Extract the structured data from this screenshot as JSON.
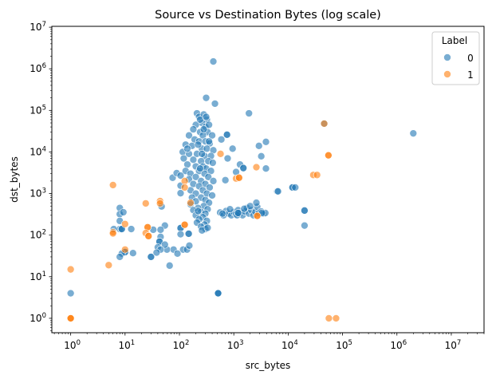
{
  "chart_data": {
    "type": "scatter",
    "title": "Source vs Destination Bytes (log scale)",
    "xlabel": "src_bytes",
    "ylabel": "dst_bytes",
    "xscale": "log",
    "yscale": "log",
    "xlim": [
      0.45,
      40000000
    ],
    "ylim": [
      0.45,
      10500000
    ],
    "grid": false,
    "legend": {
      "title": "Label",
      "placement": "top-right"
    },
    "x_ticks": [
      {
        "value": 1,
        "base": "10",
        "exp": "0"
      },
      {
        "value": 10,
        "base": "10",
        "exp": "1"
      },
      {
        "value": 100,
        "base": "10",
        "exp": "2"
      },
      {
        "value": 1000,
        "base": "10",
        "exp": "3"
      },
      {
        "value": 10000,
        "base": "10",
        "exp": "4"
      },
      {
        "value": 100000,
        "base": "10",
        "exp": "5"
      },
      {
        "value": 1000000,
        "base": "10",
        "exp": "6"
      },
      {
        "value": 10000000,
        "base": "10",
        "exp": "7"
      }
    ],
    "y_ticks": [
      {
        "value": 1,
        "base": "10",
        "exp": "0"
      },
      {
        "value": 10,
        "base": "10",
        "exp": "1"
      },
      {
        "value": 100,
        "base": "10",
        "exp": "2"
      },
      {
        "value": 1000,
        "base": "10",
        "exp": "3"
      },
      {
        "value": 10000,
        "base": "10",
        "exp": "4"
      },
      {
        "value": 100000,
        "base": "10",
        "exp": "5"
      },
      {
        "value": 1000000,
        "base": "10",
        "exp": "6"
      },
      {
        "value": 10000000,
        "base": "10",
        "exp": "7"
      }
    ],
    "series": [
      {
        "name": "0",
        "color": "#1f77b4",
        "points": [
          [
            420,
            1500000
          ],
          [
            310,
            200000
          ],
          [
            450,
            145000
          ],
          [
            1900,
            85000
          ],
          [
            210,
            85000
          ],
          [
            230,
            70000
          ],
          [
            280,
            80000
          ],
          [
            320,
            60000
          ],
          [
            260,
            50000
          ],
          [
            200,
            45000
          ],
          [
            300,
            40000
          ],
          [
            350,
            45000
          ],
          [
            180,
            35000
          ],
          [
            240,
            30000
          ],
          [
            330,
            30000
          ],
          [
            150,
            25000
          ],
          [
            270,
            25000
          ],
          [
            400,
            25000
          ],
          [
            190,
            20000
          ],
          [
            230,
            18000
          ],
          [
            300,
            18000
          ],
          [
            360,
            16000
          ],
          [
            130,
            15000
          ],
          [
            170,
            14000
          ],
          [
            260,
            12000
          ],
          [
            320,
            12000
          ],
          [
            420,
            11000
          ],
          [
            115,
            10000
          ],
          [
            150,
            9000
          ],
          [
            210,
            9000
          ],
          [
            290,
            8000
          ],
          [
            380,
            8000
          ],
          [
            120,
            7000
          ],
          [
            180,
            6500
          ],
          [
            250,
            6000
          ],
          [
            340,
            6000
          ],
          [
            410,
            5500
          ],
          [
            140,
            5000
          ],
          [
            200,
            4500
          ],
          [
            270,
            4500
          ],
          [
            310,
            4000
          ],
          [
            130,
            3500
          ],
          [
            230,
            3500
          ],
          [
            380,
            3500
          ],
          [
            160,
            3000
          ],
          [
            290,
            3000
          ],
          [
            200,
            2500
          ],
          [
            340,
            2500
          ],
          [
            150,
            2200
          ],
          [
            250,
            2000
          ],
          [
            420,
            2000
          ],
          [
            180,
            1700
          ],
          [
            300,
            1700
          ],
          [
            230,
            1500
          ],
          [
            360,
            1400
          ],
          [
            160,
            1200
          ],
          [
            270,
            1200
          ],
          [
            200,
            1000
          ],
          [
            320,
            1000
          ],
          [
            400,
            900
          ],
          [
            170,
            800
          ],
          [
            250,
            800
          ],
          [
            300,
            700
          ],
          [
            200,
            650
          ],
          [
            350,
            600
          ],
          [
            160,
            550
          ],
          [
            280,
            500
          ],
          [
            220,
            450
          ],
          [
            330,
            420
          ],
          [
            180,
            400
          ],
          [
            250,
            360
          ],
          [
            300,
            330
          ],
          [
            200,
            300
          ],
          [
            270,
            270
          ],
          [
            230,
            240
          ],
          [
            320,
            220
          ],
          [
            210,
            200
          ],
          [
            290,
            180
          ],
          [
            250,
            160
          ],
          [
            300,
            140
          ],
          [
            260,
            130
          ],
          [
            330,
            150
          ],
          [
            220,
            380
          ],
          [
            240,
            4000
          ],
          [
            260,
            9000
          ],
          [
            220,
            15000
          ],
          [
            280,
            35000
          ],
          [
            240,
            60000
          ],
          [
            310,
            70000
          ],
          [
            350,
            18000
          ],
          [
            140,
            12000
          ],
          [
            590,
            20000
          ],
          [
            750,
            26000
          ],
          [
            750,
            26000
          ],
          [
            950,
            12000
          ],
          [
            770,
            7000
          ],
          [
            700,
            2100
          ],
          [
            1300,
            5000
          ],
          [
            1500,
            4100
          ],
          [
            1500,
            4100
          ],
          [
            1100,
            3300
          ],
          [
            2900,
            14000
          ],
          [
            3900,
            17500
          ],
          [
            3200,
            7900
          ],
          [
            3900,
            4000
          ],
          [
            6300,
            1130
          ],
          [
            560,
            350
          ],
          [
            650,
            300
          ],
          [
            720,
            380
          ],
          [
            800,
            330
          ],
          [
            900,
            300
          ],
          [
            1000,
            360
          ],
          [
            1100,
            320
          ],
          [
            1200,
            400
          ],
          [
            1300,
            340
          ],
          [
            1450,
            300
          ],
          [
            1600,
            370
          ],
          [
            1750,
            450
          ],
          [
            1900,
            330
          ],
          [
            2100,
            400
          ],
          [
            2300,
            300
          ],
          [
            2500,
            360
          ],
          [
            2700,
            480
          ],
          [
            2900,
            340
          ],
          [
            3200,
            370
          ],
          [
            3500,
            330
          ],
          [
            3800,
            340
          ],
          [
            850,
            420
          ],
          [
            1550,
            430
          ],
          [
            2000,
            500
          ],
          [
            620,
            330
          ],
          [
            1150,
            300
          ],
          [
            2600,
            600
          ],
          [
            1200,
            340
          ],
          [
            1200,
            340
          ],
          [
            3300,
            340
          ],
          [
            75,
            2400
          ],
          [
            89,
            3100
          ],
          [
            105,
            2700
          ],
          [
            105,
            1550
          ],
          [
            105,
            1020
          ],
          [
            105,
            148
          ],
          [
            105,
            148
          ],
          [
            105,
            105
          ],
          [
            117,
            45
          ],
          [
            138,
            45
          ],
          [
            152,
            56
          ],
          [
            148,
            108
          ],
          [
            148,
            108
          ],
          [
            78,
            45
          ],
          [
            92,
            36
          ],
          [
            66,
            18.5
          ],
          [
            59,
            45
          ],
          [
            54,
            170
          ],
          [
            47,
            490
          ],
          [
            33,
            135
          ],
          [
            45,
            135
          ],
          [
            45,
            91
          ],
          [
            43,
            70
          ],
          [
            43,
            70
          ],
          [
            40,
            51
          ],
          [
            54,
            59
          ],
          [
            30,
            30
          ],
          [
            30,
            30
          ],
          [
            45,
            45
          ],
          [
            38,
            38
          ],
          [
            14,
            37
          ],
          [
            10,
            39
          ],
          [
            10,
            39
          ],
          [
            8.7,
            36
          ],
          [
            8,
            30
          ],
          [
            8,
            450
          ],
          [
            8,
            320
          ],
          [
            9.3,
            355
          ],
          [
            8,
            220
          ],
          [
            8,
            140
          ],
          [
            8.7,
            140
          ],
          [
            8.7,
            140
          ],
          [
            6.2,
            140
          ],
          [
            13,
            140
          ],
          [
            1,
            4
          ],
          [
            515,
            4
          ],
          [
            515,
            4
          ],
          [
            515,
            4
          ],
          [
            2000000,
            28000
          ],
          [
            46000,
            48000
          ],
          [
            12000,
            1400
          ],
          [
            12000,
            1400
          ],
          [
            13500,
            1400
          ],
          [
            6500,
            1130
          ],
          [
            20000,
            390
          ],
          [
            20000,
            390
          ],
          [
            20000,
            170
          ]
        ]
      },
      {
        "name": "1",
        "color": "#ff7f0e",
        "points": [
          [
            1,
            15
          ],
          [
            1,
            1
          ],
          [
            1,
            1
          ],
          [
            1,
            1
          ],
          [
            5,
            19
          ],
          [
            6,
            1600
          ],
          [
            6,
            118
          ],
          [
            6,
            110
          ],
          [
            10,
            185
          ],
          [
            10,
            45
          ],
          [
            24,
            580
          ],
          [
            44,
            660
          ],
          [
            44,
            580
          ],
          [
            26,
            155
          ],
          [
            26,
            155
          ],
          [
            24,
            112
          ],
          [
            27,
            95
          ],
          [
            27,
            95
          ],
          [
            125,
            2000
          ],
          [
            125,
            1400
          ],
          [
            125,
            178
          ],
          [
            125,
            178
          ],
          [
            160,
            600
          ],
          [
            570,
            9000
          ],
          [
            1100,
            2300
          ],
          [
            1250,
            2400
          ],
          [
            1250,
            2400
          ],
          [
            2600,
            4300
          ],
          [
            2700,
            290
          ],
          [
            2700,
            290
          ],
          [
            46000,
            48000
          ],
          [
            55000,
            8300
          ],
          [
            55000,
            8300
          ],
          [
            29000,
            2800
          ],
          [
            34000,
            2800
          ],
          [
            56000,
            1
          ],
          [
            76000,
            1
          ]
        ]
      }
    ]
  }
}
